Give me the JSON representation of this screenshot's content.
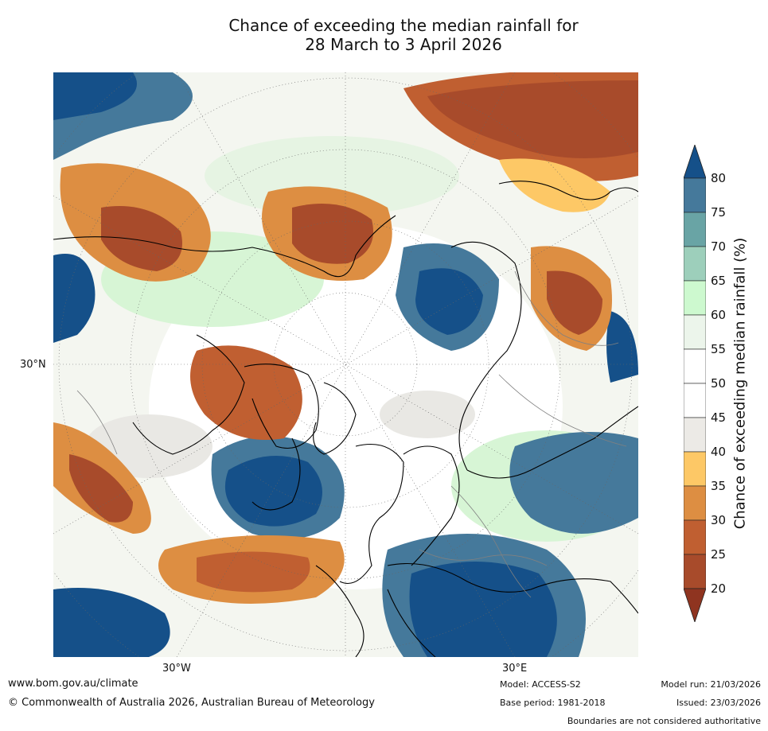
{
  "title": {
    "line1": "Chance of exceeding the median rainfall for",
    "line2": "28 March to 3 April 2026"
  },
  "map": {
    "region": "Northern Hemisphere polar stereographic",
    "labels": {
      "lat_30n": "30°N",
      "lon_30w": "30°W",
      "lon_30e": "30°E"
    }
  },
  "legend": {
    "label": "Chance of exceeding median rainfall (%)",
    "ticks": [
      "80",
      "75",
      "70",
      "65",
      "60",
      "55",
      "50",
      "45",
      "40",
      "35",
      "30",
      "25",
      "20"
    ],
    "colors": {
      "over_80": "#155089",
      "75_80": "#45799b",
      "70_75": "#69a4a5",
      "65_70": "#9dcfbb",
      "60_65": "#cdf9cf",
      "55_60": "#ecf5eb",
      "50_55": "#ffffff",
      "45_50": "#ffffff",
      "40_45": "#eceae6",
      "35_40": "#fdc866",
      "30_35": "#dd8e42",
      "25_30": "#c05f31",
      "20_25": "#a84b2b",
      "under_20": "#8f3420"
    }
  },
  "footer": {
    "website": "www.bom.gov.au/climate",
    "copyright": "© Commonwealth of Australia 2026, Australian Bureau of Meteorology",
    "model": "Model: ACCESS-S2",
    "base_period": "Base period: 1981-2018",
    "model_run": "Model run: 21/03/2026",
    "issued": "Issued: 23/03/2026",
    "disclaimer": "Boundaries are not considered authoritative"
  }
}
